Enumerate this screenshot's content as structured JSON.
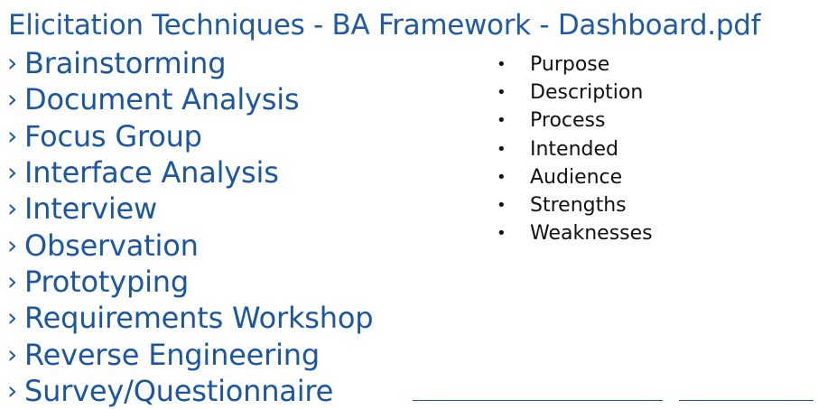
{
  "document": {
    "title": "Elicitation Techniques - BA Framework - Dashboard.pdf"
  },
  "techniques": {
    "marker": "›",
    "items": [
      "Brainstorming",
      "Document Analysis",
      "Focus Group",
      "Interface Analysis",
      "Interview",
      "Observation",
      "Prototyping",
      "Requirements Workshop",
      "Reverse Engineering",
      "Survey/Questionnaire"
    ]
  },
  "attributes": {
    "marker": "•",
    "items": [
      "Purpose",
      "Description",
      "Process",
      "Intended",
      "Audience",
      "Strengths",
      "Weaknesses"
    ]
  },
  "colors": {
    "accent": "#1a56a4",
    "text": "#111111",
    "background": "#ffffff"
  }
}
